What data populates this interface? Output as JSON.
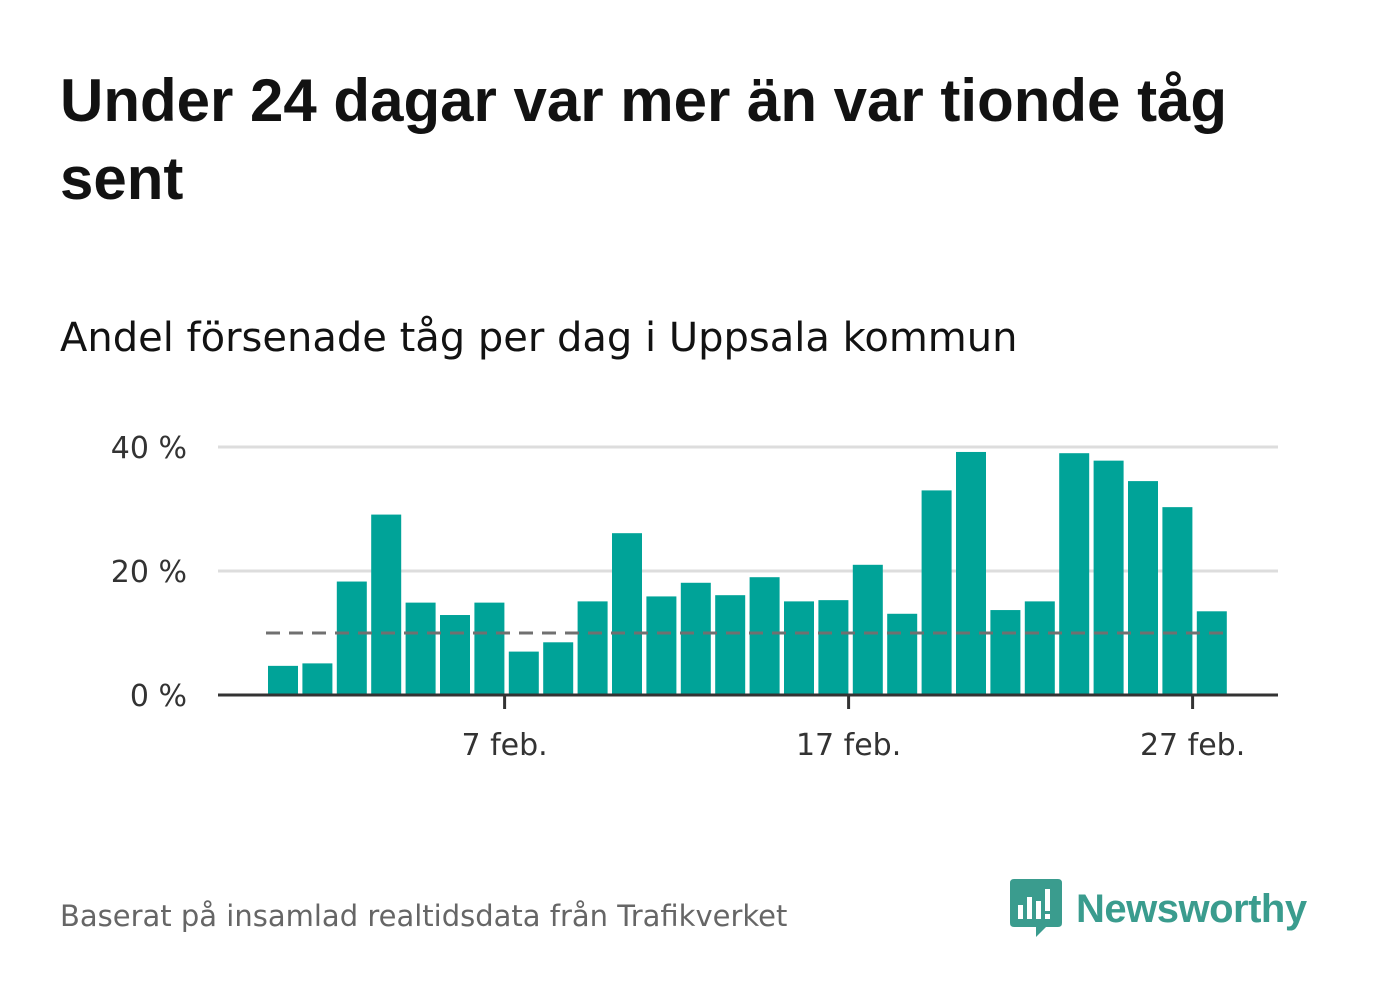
{
  "title": "Under 24 dagar var mer än var tionde tåg sent",
  "subtitle": "Andel försenade tåg per dag i Uppsala kommun",
  "source": "Baserat på insamlad realtidsdata från Trafikverket",
  "brand": {
    "name": "Newsworthy",
    "color": "#3a9c8e"
  },
  "colors": {
    "bar": "#00a398",
    "grid": "#dddddd",
    "axis": "#333333",
    "threshold": "#707070"
  },
  "chart_data": {
    "type": "bar",
    "categories": [
      "1 feb.",
      "2 feb.",
      "3 feb.",
      "4 feb.",
      "5 feb.",
      "6 feb.",
      "7 feb.",
      "8 feb.",
      "9 feb.",
      "10 feb.",
      "11 feb.",
      "12 feb.",
      "13 feb.",
      "14 feb.",
      "15 feb.",
      "16 feb.",
      "17 feb.",
      "18 feb.",
      "19 feb.",
      "20 feb.",
      "21 feb.",
      "22 feb.",
      "23 feb.",
      "24 feb.",
      "25 feb.",
      "26 feb.",
      "27 feb.",
      "28 feb."
    ],
    "values": [
      4.7,
      5.1,
      18.3,
      29.1,
      14.9,
      12.9,
      14.9,
      7.0,
      8.5,
      15.1,
      26.1,
      15.9,
      18.1,
      16.1,
      19.0,
      15.1,
      15.3,
      21.0,
      13.1,
      33.0,
      39.2,
      13.7,
      15.1,
      39.0,
      37.8,
      34.5,
      30.3,
      13.5
    ],
    "threshold": 10,
    "ylim": [
      0,
      40
    ],
    "yticks": [
      0,
      20,
      40
    ],
    "ytick_labels": [
      "0 %",
      "20 %",
      "40 %"
    ],
    "xticks": [
      "7 feb.",
      "17 feb.",
      "27 feb."
    ],
    "grid": true,
    "xlabel": "",
    "ylabel": ""
  }
}
